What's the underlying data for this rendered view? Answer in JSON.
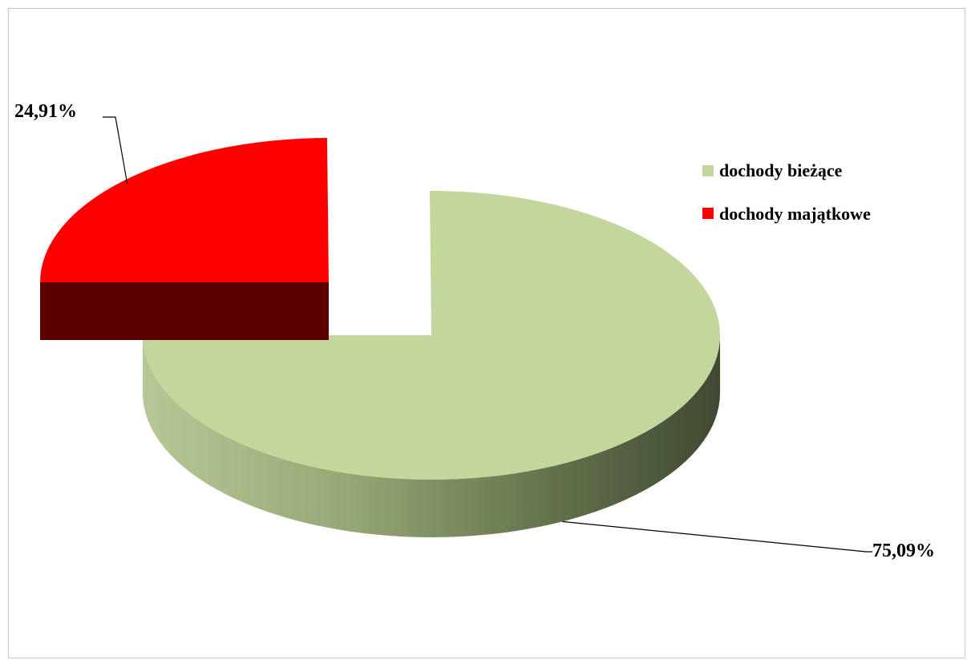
{
  "chart_data": {
    "type": "pie",
    "style": "3d-exploded",
    "title": "",
    "categories": [
      "dochody bieżące",
      "dochody majątkowe"
    ],
    "values": [
      75.09,
      24.91
    ],
    "value_labels": [
      "75,09%",
      "24,91%"
    ],
    "colors": {
      "dochody bieżące": {
        "top": "#c3d69b",
        "side_light": "#aab888",
        "side_dark": "#4a553a"
      },
      "dochody majątkowe": {
        "top": "#ff0000",
        "side": "#5c0000"
      }
    },
    "legend": {
      "position": "right",
      "entries": [
        {
          "label": "dochody bieżące",
          "color": "#c3d69b"
        },
        {
          "label": "dochody majątkowe",
          "color": "#ff0000"
        }
      ]
    }
  }
}
